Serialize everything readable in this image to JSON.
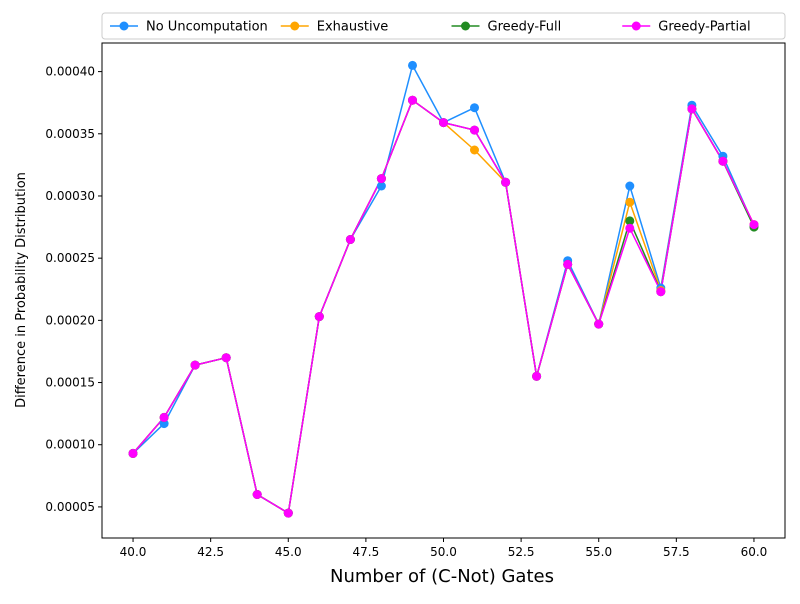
{
  "chart_data": {
    "type": "line",
    "xlabel": "Number of (C-Not) Gates",
    "ylabel": "Difference in Probability Distribution",
    "xlim": [
      39.0,
      61.0
    ],
    "ylim": [
      2.5e-05,
      0.000423
    ],
    "xticks": [
      40.0,
      42.5,
      45.0,
      47.5,
      50.0,
      52.5,
      55.0,
      57.5,
      60.0
    ],
    "xtick_labels": [
      "40.0",
      "42.5",
      "45.0",
      "47.5",
      "50.0",
      "52.5",
      "55.0",
      "57.5",
      "60.0"
    ],
    "yticks": [
      5e-05,
      0.0001,
      0.00015,
      0.0002,
      0.00025,
      0.0003,
      0.00035,
      0.0004
    ],
    "ytick_labels": [
      "0.00005",
      "0.00010",
      "0.00015",
      "0.00020",
      "0.00025",
      "0.00030",
      "0.00035",
      "0.00040"
    ],
    "grid": false,
    "legend_position": "top",
    "x": [
      40,
      41,
      42,
      43,
      44,
      45,
      46,
      47,
      48,
      49,
      50,
      51,
      52,
      53,
      54,
      55,
      56,
      57,
      58,
      59,
      60
    ],
    "series": [
      {
        "name": "No Uncomputation",
        "color": "#1f8fff",
        "values": [
          9.3e-05,
          0.000117,
          0.000164,
          0.00017,
          6e-05,
          4.5e-05,
          0.000203,
          0.000265,
          0.000308,
          0.000405,
          0.000359,
          0.000371,
          0.000311,
          0.000155,
          0.000248,
          0.000197,
          0.000308,
          0.000226,
          0.000373,
          0.000332,
          0.000276
        ]
      },
      {
        "name": "Exhaustive",
        "color": "#ffa500",
        "values": [
          9.3e-05,
          0.000122,
          0.000164,
          0.00017,
          6e-05,
          4.5e-05,
          0.000203,
          0.000265,
          0.000314,
          0.000377,
          0.000359,
          0.000337,
          0.000311,
          0.000155,
          0.000245,
          0.000197,
          0.000295,
          0.000224,
          0.00037,
          0.000328,
          0.000277
        ]
      },
      {
        "name": "Greedy-Full",
        "color": "#228b22",
        "values": [
          9.3e-05,
          0.000122,
          0.000164,
          0.00017,
          6e-05,
          4.5e-05,
          0.000203,
          0.000265,
          0.000314,
          0.000377,
          0.000359,
          0.000353,
          0.000311,
          0.000155,
          0.000245,
          0.000197,
          0.00028,
          0.000223,
          0.00037,
          0.000328,
          0.000275
        ]
      },
      {
        "name": "Greedy-Partial",
        "color": "#ff00ff",
        "values": [
          9.3e-05,
          0.000122,
          0.000164,
          0.00017,
          6e-05,
          4.5e-05,
          0.000203,
          0.000265,
          0.000314,
          0.000377,
          0.000359,
          0.000353,
          0.000311,
          0.000155,
          0.000245,
          0.000197,
          0.000274,
          0.000223,
          0.00037,
          0.000328,
          0.000277
        ]
      }
    ]
  }
}
